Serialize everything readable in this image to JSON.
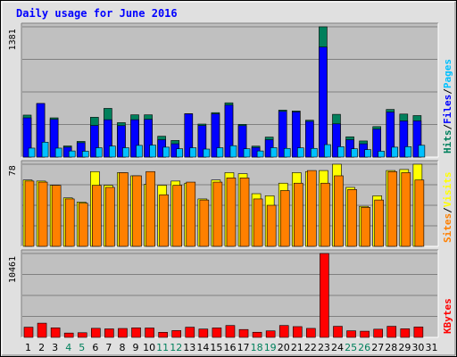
{
  "title": "Daily usage for June 2016",
  "colors": {
    "title": "#0000ff",
    "hits": "#00805c",
    "files": "#0000ff",
    "pages": "#00c0ff",
    "visits": "#ffff00",
    "sites": "#ff8000",
    "kbytes": "#ff0000",
    "panel_bg": "#c0c0c0",
    "frame_bg": "#e0e0e0",
    "weekend_label": "#00805c",
    "day_label": "#000000"
  },
  "chart_data": [
    {
      "type": "bar",
      "panel": "hits-files-pages",
      "ylabel_max": "1381",
      "ylim": [
        0,
        1381
      ],
      "legend": [
        "Hits",
        "/",
        "Files",
        "/",
        "Pages"
      ],
      "x": [
        "1",
        "2",
        "3",
        "4",
        "5",
        "6",
        "7",
        "8",
        "9",
        "10",
        "11",
        "12",
        "13",
        "14",
        "15",
        "16",
        "17",
        "18",
        "19",
        "20",
        "21",
        "22",
        "23",
        "24",
        "25",
        "26",
        "27",
        "28",
        "29",
        "30",
        "31"
      ],
      "series": [
        {
          "name": "Hits",
          "values": [
            445,
            568,
            416,
            118,
            166,
            422,
            516,
            365,
            448,
            448,
            221,
            176,
            460,
            350,
            471,
            575,
            347,
            116,
            212,
            498,
            489,
            391,
            1381,
            453,
            215,
            171,
            323,
            505,
            456,
            440,
            0
          ]
        },
        {
          "name": "Files",
          "values": [
            416,
            568,
            400,
            105,
            152,
            335,
            396,
            333,
            396,
            400,
            184,
            141,
            458,
            334,
            458,
            551,
            333,
            102,
            184,
            484,
            478,
            378,
            1166,
            352,
            184,
            141,
            297,
            477,
            383,
            384,
            0
          ]
        },
        {
          "name": "Pages",
          "values": [
            95,
            158,
            95,
            65,
            62,
            99,
            117,
            99,
            124,
            127,
            105,
            88,
            99,
            85,
            99,
            121,
            88,
            65,
            100,
            92,
            98,
            92,
            132,
            110,
            88,
            79,
            62,
            105,
            110,
            125,
            0
          ]
        }
      ]
    },
    {
      "type": "bar",
      "panel": "visits-sites",
      "ylabel_max": "78",
      "ylim": [
        0,
        78
      ],
      "legend": [
        "Sites",
        "/",
        "Visits"
      ],
      "x": [
        "1",
        "2",
        "3",
        "4",
        "5",
        "6",
        "7",
        "8",
        "9",
        "10",
        "11",
        "12",
        "13",
        "14",
        "15",
        "16",
        "17",
        "18",
        "19",
        "20",
        "21",
        "22",
        "23",
        "24",
        "25",
        "26",
        "27",
        "28",
        "29",
        "30",
        "31"
      ],
      "series": [
        {
          "name": "Visits",
          "values": [
            63,
            62,
            58,
            46,
            42,
            71,
            58,
            70,
            67,
            59,
            58,
            62,
            60,
            45,
            63,
            70,
            69,
            50,
            48,
            60,
            70,
            71,
            72,
            78,
            56,
            38,
            48,
            72,
            73,
            78,
            0
          ]
        },
        {
          "name": "Sites",
          "values": [
            62,
            61,
            58,
            45,
            41,
            58,
            56,
            70,
            67,
            71,
            49,
            58,
            61,
            44,
            61,
            65,
            65,
            45,
            39,
            53,
            60,
            72,
            60,
            67,
            54,
            37,
            44,
            71,
            70,
            63,
            0
          ]
        }
      ]
    },
    {
      "type": "bar",
      "panel": "kbytes",
      "ylabel_max": "10461",
      "ylim": [
        0,
        10461
      ],
      "legend": [
        "KBytes"
      ],
      "x": [
        "1",
        "2",
        "3",
        "4",
        "5",
        "6",
        "7",
        "8",
        "9",
        "10",
        "11",
        "12",
        "13",
        "14",
        "15",
        "16",
        "17",
        "18",
        "19",
        "20",
        "21",
        "22",
        "23",
        "24",
        "25",
        "26",
        "27",
        "28",
        "29",
        "30",
        "31"
      ],
      "series": [
        {
          "name": "KBytes",
          "values": [
            1270,
            1770,
            1190,
            540,
            580,
            1130,
            1060,
            1110,
            1190,
            1170,
            630,
            850,
            1270,
            1040,
            1180,
            1480,
            980,
            640,
            810,
            1480,
            1340,
            1120,
            10461,
            1380,
            820,
            770,
            1020,
            1380,
            1070,
            1300,
            0
          ]
        }
      ]
    }
  ],
  "weekend_days": [
    4,
    5,
    11,
    12,
    18,
    19,
    25,
    26
  ]
}
